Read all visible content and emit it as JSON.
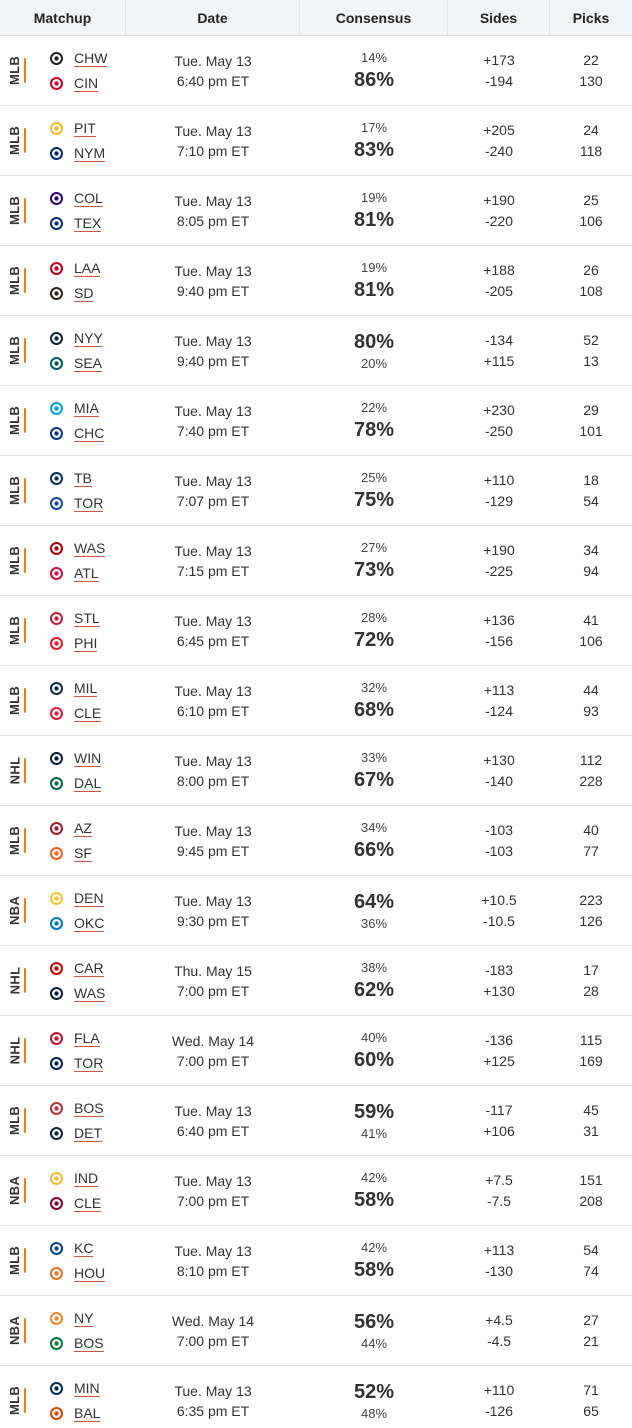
{
  "headers": {
    "matchup": "Matchup",
    "date": "Date",
    "consensus": "Consensus",
    "sides": "Sides",
    "picks": "Picks"
  },
  "rows": [
    {
      "league": "MLB",
      "away": "CHW",
      "home": "CIN",
      "away_logo": "white-sox-icon",
      "home_logo": "reds-icon",
      "day": "Tue. May 13",
      "time": "6:40 pm ET",
      "cons_away": "14%",
      "cons_home": "86%",
      "fav": "home",
      "side_away": "+173",
      "side_home": "-194",
      "picks_away": "22",
      "picks_home": "130"
    },
    {
      "league": "MLB",
      "away": "PIT",
      "home": "NYM",
      "away_logo": "pirates-icon",
      "home_logo": "mets-icon",
      "day": "Tue. May 13",
      "time": "7:10 pm ET",
      "cons_away": "17%",
      "cons_home": "83%",
      "fav": "home",
      "side_away": "+205",
      "side_home": "-240",
      "picks_away": "24",
      "picks_home": "118"
    },
    {
      "league": "MLB",
      "away": "COL",
      "home": "TEX",
      "away_logo": "rockies-icon",
      "home_logo": "rangers-icon",
      "day": "Tue. May 13",
      "time": "8:05 pm ET",
      "cons_away": "19%",
      "cons_home": "81%",
      "fav": "home",
      "side_away": "+190",
      "side_home": "-220",
      "picks_away": "25",
      "picks_home": "106"
    },
    {
      "league": "MLB",
      "away": "LAA",
      "home": "SD",
      "away_logo": "angels-icon",
      "home_logo": "padres-icon",
      "day": "Tue. May 13",
      "time": "9:40 pm ET",
      "cons_away": "19%",
      "cons_home": "81%",
      "fav": "home",
      "side_away": "+188",
      "side_home": "-205",
      "picks_away": "26",
      "picks_home": "108"
    },
    {
      "league": "MLB",
      "away": "NYY",
      "home": "SEA",
      "away_logo": "yankees-icon",
      "home_logo": "mariners-icon",
      "day": "Tue. May 13",
      "time": "9:40 pm ET",
      "cons_away": "80%",
      "cons_home": "20%",
      "fav": "away",
      "side_away": "-134",
      "side_home": "+115",
      "picks_away": "52",
      "picks_home": "13"
    },
    {
      "league": "MLB",
      "away": "MIA",
      "home": "CHC",
      "away_logo": "marlins-icon",
      "home_logo": "cubs-icon",
      "day": "Tue. May 13",
      "time": "7:40 pm ET",
      "cons_away": "22%",
      "cons_home": "78%",
      "fav": "home",
      "side_away": "+230",
      "side_home": "-250",
      "picks_away": "29",
      "picks_home": "101"
    },
    {
      "league": "MLB",
      "away": "TB",
      "home": "TOR",
      "away_logo": "rays-icon",
      "home_logo": "blue-jays-icon",
      "day": "Tue. May 13",
      "time": "7:07 pm ET",
      "cons_away": "25%",
      "cons_home": "75%",
      "fav": "home",
      "side_away": "+110",
      "side_home": "-129",
      "picks_away": "18",
      "picks_home": "54"
    },
    {
      "league": "MLB",
      "away": "WAS",
      "home": "ATL",
      "away_logo": "nationals-icon",
      "home_logo": "braves-icon",
      "day": "Tue. May 13",
      "time": "7:15 pm ET",
      "cons_away": "27%",
      "cons_home": "73%",
      "fav": "home",
      "side_away": "+190",
      "side_home": "-225",
      "picks_away": "34",
      "picks_home": "94"
    },
    {
      "league": "MLB",
      "away": "STL",
      "home": "PHI",
      "away_logo": "cardinals-icon",
      "home_logo": "phillies-icon",
      "day": "Tue. May 13",
      "time": "6:45 pm ET",
      "cons_away": "28%",
      "cons_home": "72%",
      "fav": "home",
      "side_away": "+136",
      "side_home": "-156",
      "picks_away": "41",
      "picks_home": "106"
    },
    {
      "league": "MLB",
      "away": "MIL",
      "home": "CLE",
      "away_logo": "brewers-icon",
      "home_logo": "guardians-icon",
      "day": "Tue. May 13",
      "time": "6:10 pm ET",
      "cons_away": "32%",
      "cons_home": "68%",
      "fav": "home",
      "side_away": "+113",
      "side_home": "-124",
      "picks_away": "44",
      "picks_home": "93"
    },
    {
      "league": "NHL",
      "away": "WIN",
      "home": "DAL",
      "away_logo": "jets-icon",
      "home_logo": "stars-icon",
      "day": "Tue. May 13",
      "time": "8:00 pm ET",
      "cons_away": "33%",
      "cons_home": "67%",
      "fav": "home",
      "side_away": "+130",
      "side_home": "-140",
      "picks_away": "112",
      "picks_home": "228"
    },
    {
      "league": "MLB",
      "away": "AZ",
      "home": "SF",
      "away_logo": "diamondbacks-icon",
      "home_logo": "giants-icon",
      "day": "Tue. May 13",
      "time": "9:45 pm ET",
      "cons_away": "34%",
      "cons_home": "66%",
      "fav": "home",
      "side_away": "-103",
      "side_home": "-103",
      "picks_away": "40",
      "picks_home": "77"
    },
    {
      "league": "NBA",
      "away": "DEN",
      "home": "OKC",
      "away_logo": "nuggets-icon",
      "home_logo": "thunder-icon",
      "day": "Tue. May 13",
      "time": "9:30 pm ET",
      "cons_away": "64%",
      "cons_home": "36%",
      "fav": "away",
      "side_away": "+10.5",
      "side_home": "-10.5",
      "picks_away": "223",
      "picks_home": "126"
    },
    {
      "league": "NHL",
      "away": "CAR",
      "home": "WAS",
      "away_logo": "hurricanes-icon",
      "home_logo": "capitals-icon",
      "day": "Thu. May 15",
      "time": "7:00 pm ET",
      "cons_away": "38%",
      "cons_home": "62%",
      "fav": "home",
      "side_away": "-183",
      "side_home": "+130",
      "picks_away": "17",
      "picks_home": "28"
    },
    {
      "league": "NHL",
      "away": "FLA",
      "home": "TOR",
      "away_logo": "panthers-icon",
      "home_logo": "maple-leafs-icon",
      "day": "Wed. May 14",
      "time": "7:00 pm ET",
      "cons_away": "40%",
      "cons_home": "60%",
      "fav": "home",
      "side_away": "-136",
      "side_home": "+125",
      "picks_away": "115",
      "picks_home": "169"
    },
    {
      "league": "MLB",
      "away": "BOS",
      "home": "DET",
      "away_logo": "red-sox-icon",
      "home_logo": "tigers-icon",
      "day": "Tue. May 13",
      "time": "6:40 pm ET",
      "cons_away": "59%",
      "cons_home": "41%",
      "fav": "away",
      "side_away": "-117",
      "side_home": "+106",
      "picks_away": "45",
      "picks_home": "31"
    },
    {
      "league": "NBA",
      "away": "IND",
      "home": "CLE",
      "away_logo": "pacers-icon",
      "home_logo": "cavaliers-icon",
      "day": "Tue. May 13",
      "time": "7:00 pm ET",
      "cons_away": "42%",
      "cons_home": "58%",
      "fav": "home",
      "side_away": "+7.5",
      "side_home": "-7.5",
      "picks_away": "151",
      "picks_home": "208"
    },
    {
      "league": "MLB",
      "away": "KC",
      "home": "HOU",
      "away_logo": "royals-icon",
      "home_logo": "astros-icon",
      "day": "Tue. May 13",
      "time": "8:10 pm ET",
      "cons_away": "42%",
      "cons_home": "58%",
      "fav": "home",
      "side_away": "+113",
      "side_home": "-130",
      "picks_away": "54",
      "picks_home": "74"
    },
    {
      "league": "NBA",
      "away": "NY",
      "home": "BOS",
      "away_logo": "knicks-icon",
      "home_logo": "celtics-icon",
      "day": "Wed. May 14",
      "time": "7:00 pm ET",
      "cons_away": "56%",
      "cons_home": "44%",
      "fav": "away",
      "side_away": "+4.5",
      "side_home": "-4.5",
      "picks_away": "27",
      "picks_home": "21"
    },
    {
      "league": "MLB",
      "away": "MIN",
      "home": "BAL",
      "away_logo": "twins-icon",
      "home_logo": "orioles-icon",
      "day": "Tue. May 13",
      "time": "6:35 pm ET",
      "cons_away": "52%",
      "cons_home": "48%",
      "fav": "away",
      "side_away": "+110",
      "side_home": "-126",
      "picks_away": "71",
      "picks_home": "65"
    }
  ],
  "logo_colors": {
    "white-sox-icon": "#222222",
    "reds-icon": "#c6011f",
    "pirates-icon": "#fdb827",
    "mets-icon": "#002d72",
    "rockies-icon": "#33006f",
    "rangers-icon": "#003278",
    "angels-icon": "#ba0021",
    "padres-icon": "#2f241d",
    "yankees-icon": "#0c2340",
    "mariners-icon": "#005c5c",
    "marlins-icon": "#00a3e0",
    "cubs-icon": "#0e3386",
    "rays-icon": "#092c5c",
    "blue-jays-icon": "#134a8e",
    "nationals-icon": "#ab0003",
    "braves-icon": "#ce1141",
    "cardinals-icon": "#c41e3a",
    "phillies-icon": "#e81828",
    "brewers-icon": "#12284b",
    "guardians-icon": "#e31937",
    "jets-icon": "#041e42",
    "stars-icon": "#006847",
    "diamondbacks-icon": "#a71930",
    "giants-icon": "#fd5a1e",
    "nuggets-icon": "#fec524",
    "thunder-icon": "#007ac1",
    "hurricanes-icon": "#cc0000",
    "capitals-icon": "#041e42",
    "panthers-icon": "#c8102e",
    "maple-leafs-icon": "#00205b",
    "red-sox-icon": "#bd3039",
    "tigers-icon": "#0c2340",
    "pacers-icon": "#fdbb30",
    "cavaliers-icon": "#860038",
    "royals-icon": "#004687",
    "astros-icon": "#eb6e1f",
    "knicks-icon": "#f58426",
    "celtics-icon": "#007a33",
    "twins-icon": "#002b5c",
    "orioles-icon": "#df4601"
  },
  "accent_color": "#e67e22"
}
